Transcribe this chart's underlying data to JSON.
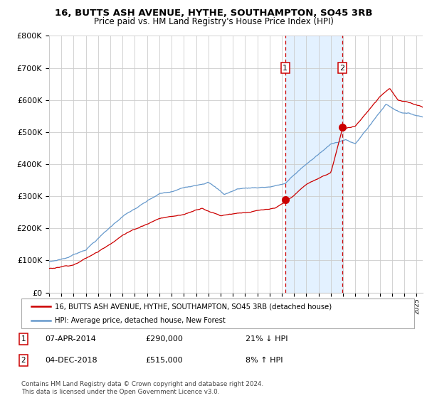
{
  "title": "16, BUTTS ASH AVENUE, HYTHE, SOUTHAMPTON, SO45 3RB",
  "subtitle": "Price paid vs. HM Land Registry's House Price Index (HPI)",
  "legend_label_red": "16, BUTTS ASH AVENUE, HYTHE, SOUTHAMPTON, SO45 3RB (detached house)",
  "legend_label_blue": "HPI: Average price, detached house, New Forest",
  "sale1_date": "07-APR-2014",
  "sale1_price": 290000,
  "sale1_pct": "21% ↓ HPI",
  "sale2_date": "04-DEC-2018",
  "sale2_price": 515000,
  "sale2_pct": "8% ↑ HPI",
  "footnote": "Contains HM Land Registry data © Crown copyright and database right 2024.\nThis data is licensed under the Open Government Licence v3.0.",
  "xmin": 1995.0,
  "xmax": 2025.5,
  "ymin": 0,
  "ymax": 800000,
  "color_red": "#cc0000",
  "color_blue": "#6699cc",
  "color_shading": "#ddeeff",
  "sale1_x": 2014.27,
  "sale2_x": 2018.92,
  "sale1_y": 290000,
  "sale2_y": 515000,
  "background_color": "#ffffff",
  "grid_color": "#cccccc",
  "yticks": [
    0,
    100000,
    200000,
    300000,
    400000,
    500000,
    600000,
    700000,
    800000
  ],
  "ytick_labels": [
    "£0",
    "£100K",
    "£200K",
    "£300K",
    "£400K",
    "£500K",
    "£600K",
    "£700K",
    "£800K"
  ]
}
